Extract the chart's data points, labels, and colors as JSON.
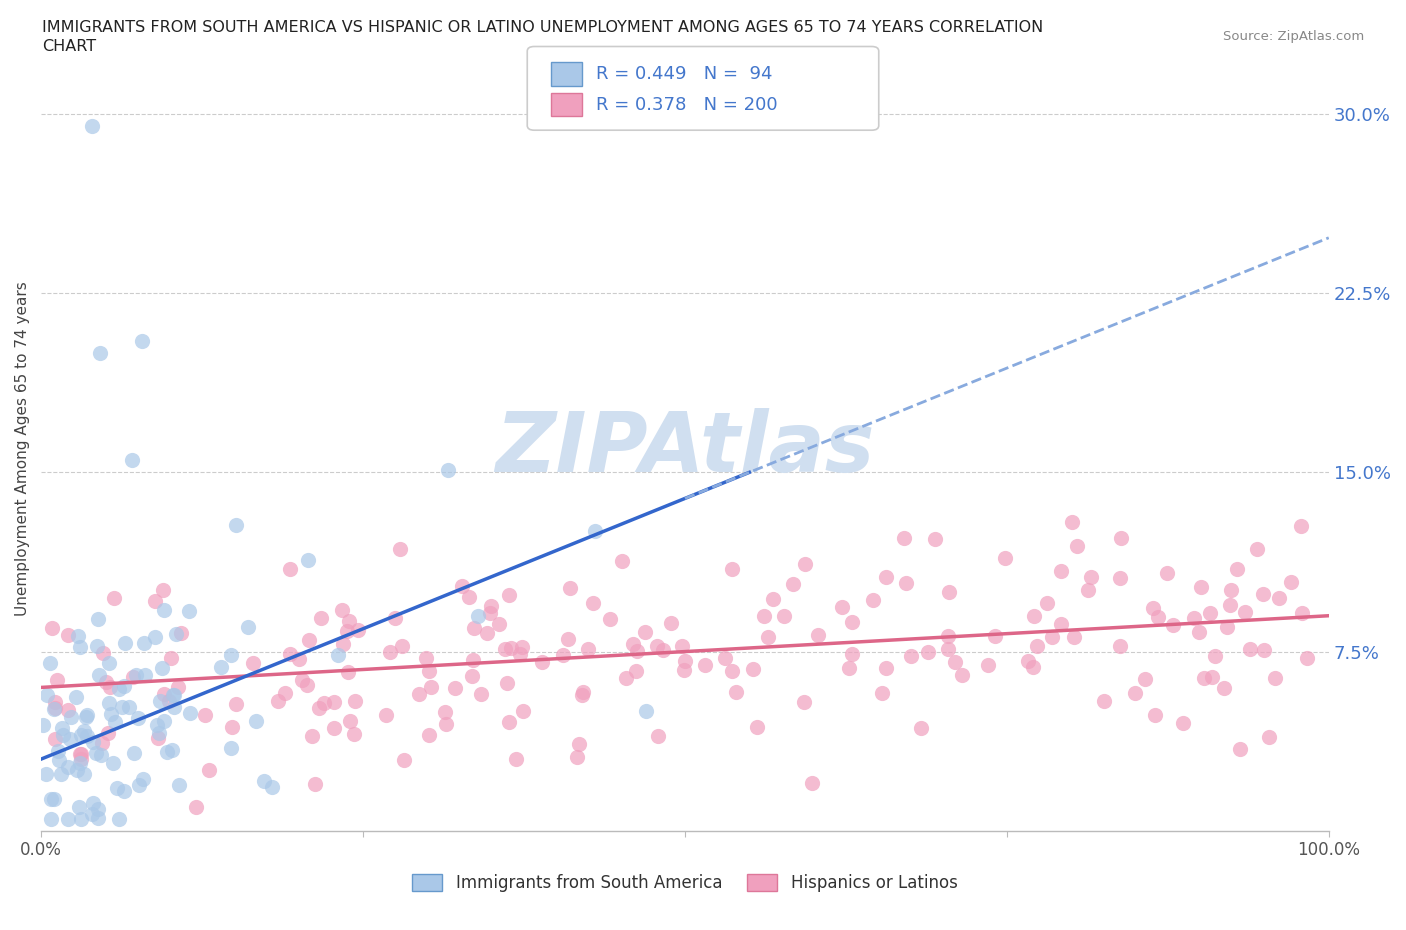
{
  "title_line1": "IMMIGRANTS FROM SOUTH AMERICA VS HISPANIC OR LATINO UNEMPLOYMENT AMONG AGES 65 TO 74 YEARS CORRELATION",
  "title_line2": "CHART",
  "source": "Source: ZipAtlas.com",
  "ylabel": "Unemployment Among Ages 65 to 74 years",
  "xlim": [
    0,
    100
  ],
  "ylim": [
    0,
    32
  ],
  "grid_color": "#cccccc",
  "background_color": "#ffffff",
  "blue_R": 0.449,
  "blue_N": 94,
  "pink_R": 0.378,
  "pink_N": 200,
  "blue_color": "#aac8e8",
  "blue_edge": "none",
  "pink_color": "#f0a0be",
  "pink_edge": "none",
  "blue_line_color": "#3366cc",
  "dashed_line_color": "#88aade",
  "pink_line_color": "#dd6688",
  "legend_blue_fill": "#aac8e8",
  "legend_pink_fill": "#f0a0be",
  "legend_blue_edge": "#6699cc",
  "legend_pink_edge": "#dd7799",
  "tick_color": "#4477cc",
  "axis_color": "#888888",
  "watermark": "ZIPAtlas",
  "watermark_color": "#d0dff0"
}
